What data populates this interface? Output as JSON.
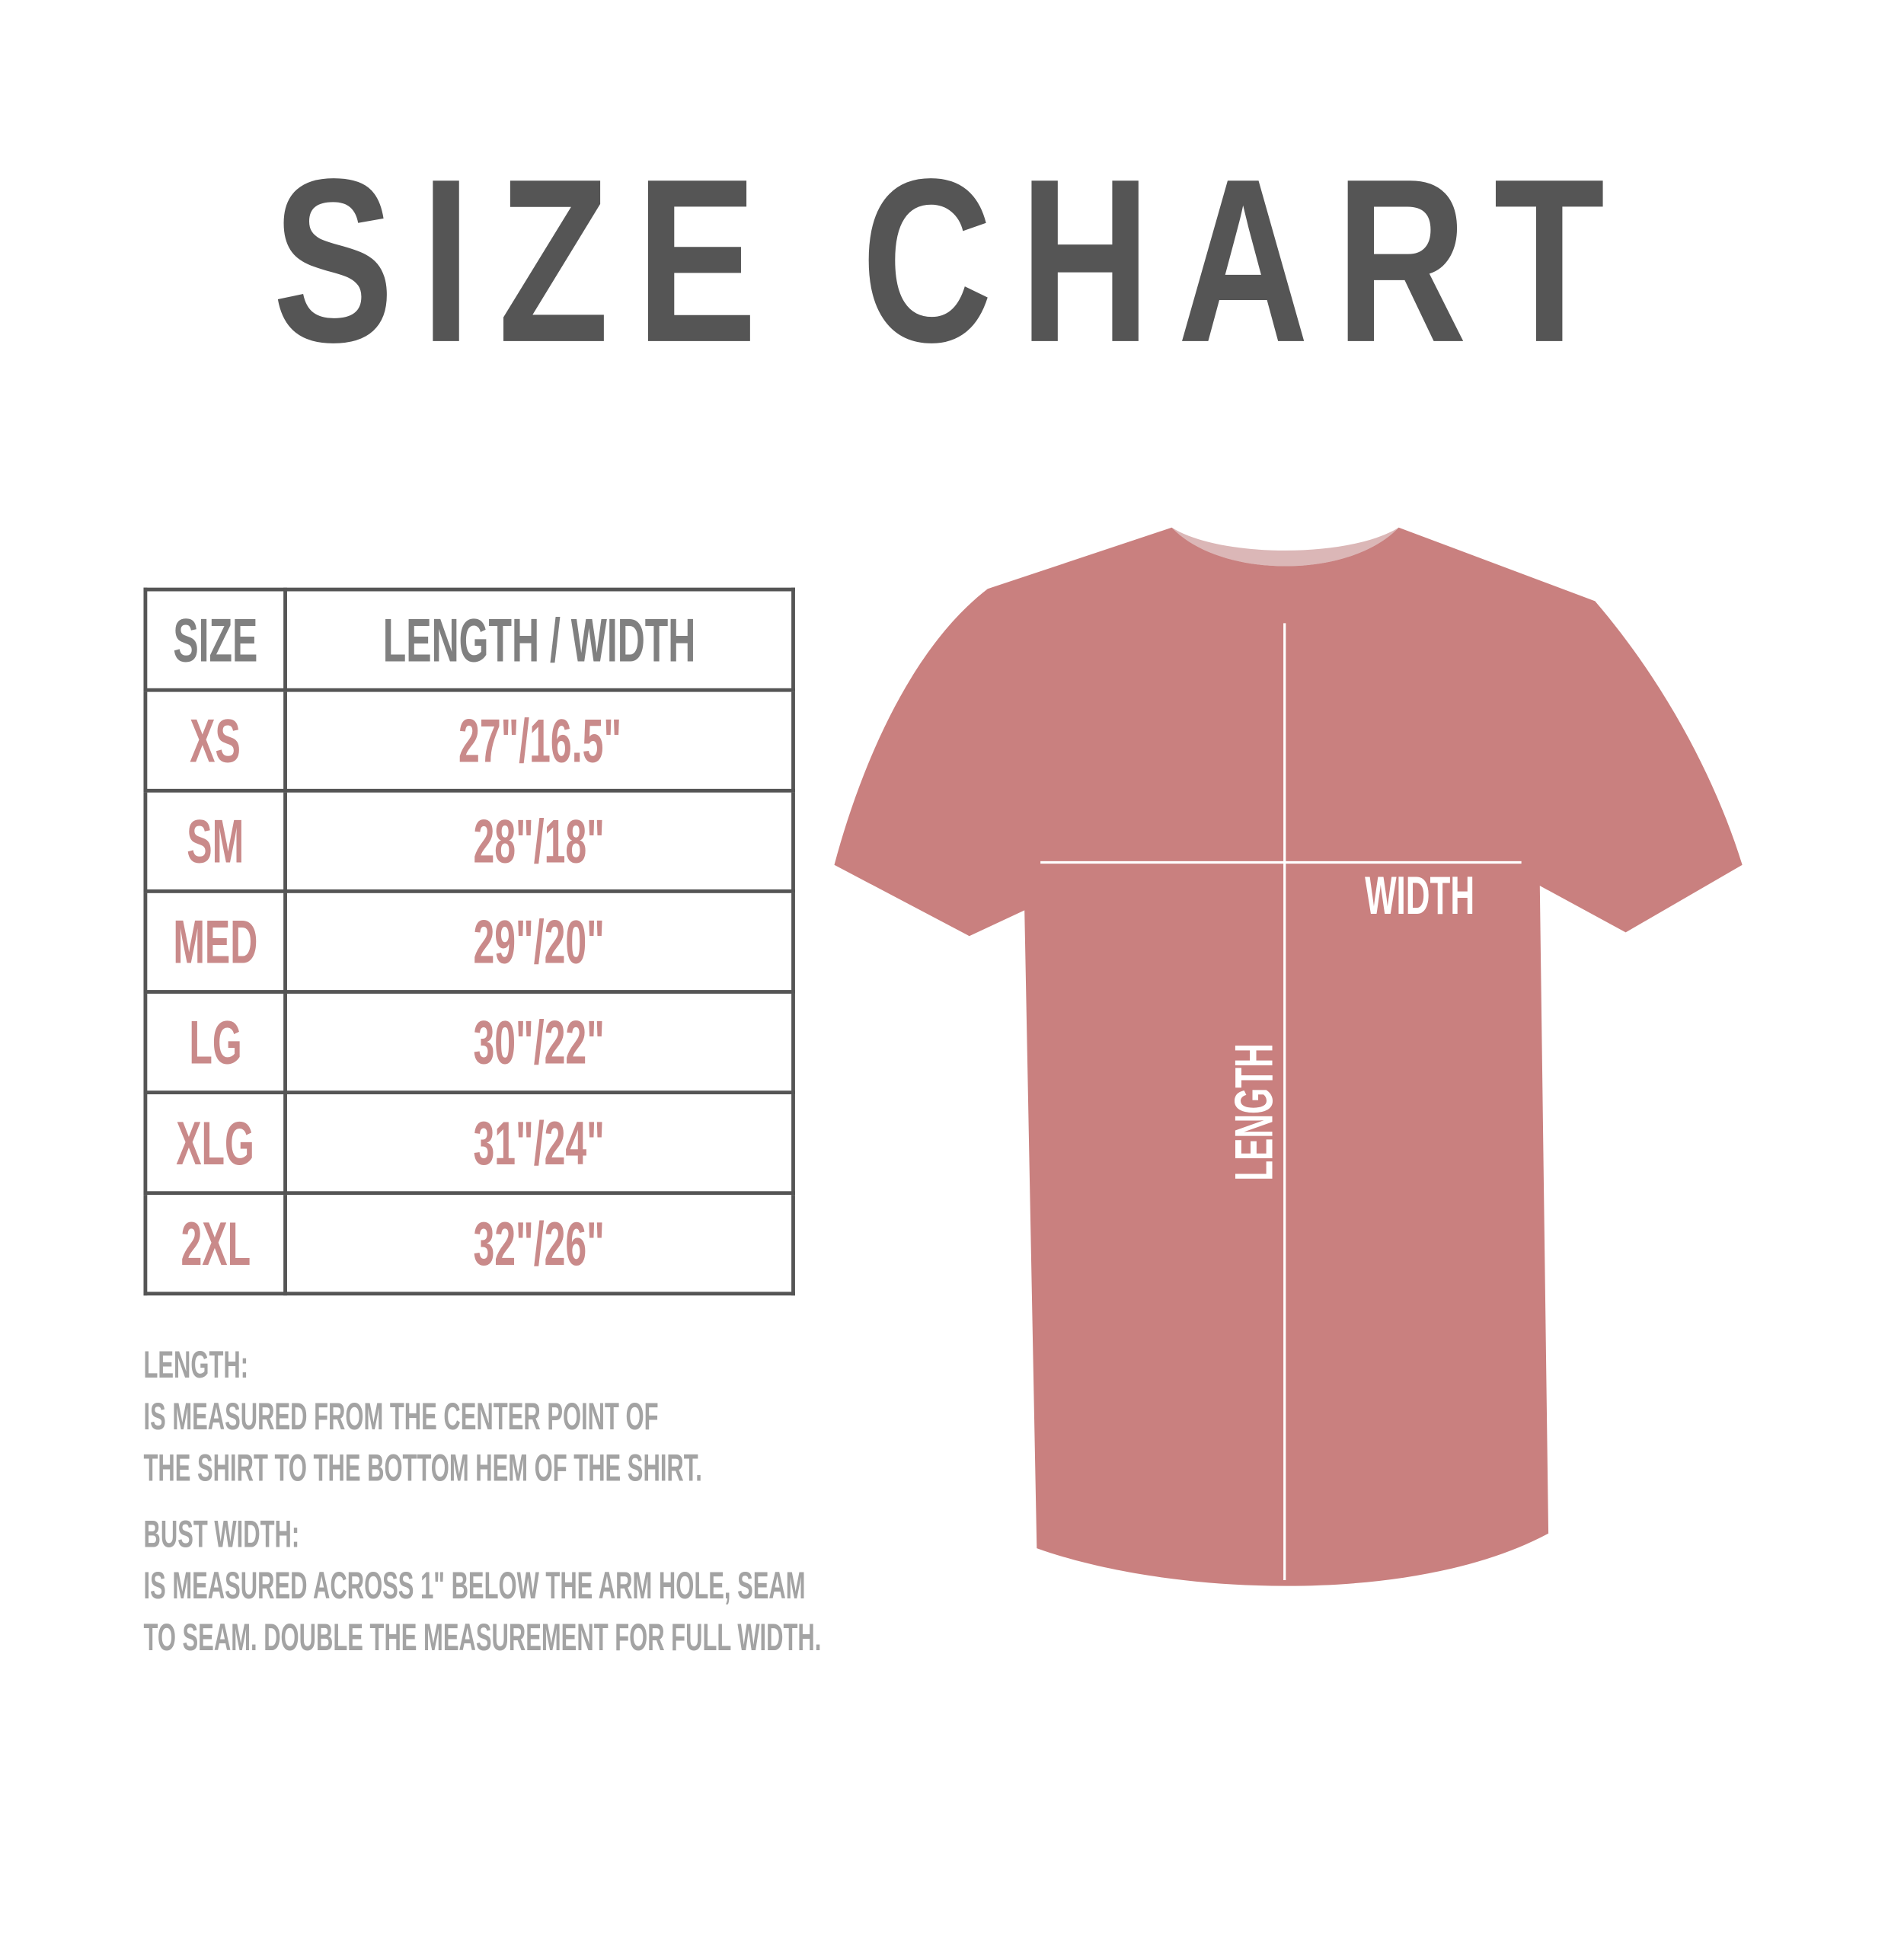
{
  "title": "SIZE CHART",
  "table": {
    "headers": [
      "SIZE",
      "LENGTH / WIDTH"
    ],
    "rows": [
      {
        "size": "XS",
        "measure": "27\"/16.5\""
      },
      {
        "size": "SM",
        "measure": "28\"/18\""
      },
      {
        "size": "MED",
        "measure": "29\"/20\""
      },
      {
        "size": "LG",
        "measure": "30\"/22\""
      },
      {
        "size": "XLG",
        "measure": "31\"/24\""
      },
      {
        "size": "2XL",
        "measure": "32\"/26\""
      }
    ]
  },
  "notes": {
    "length_heading": "LENGTH:",
    "length_lines": [
      "IS MEASURED FROM THE CENTER POINT OF",
      "THE SHIRT TO THE BOTTOM HEM OF THE SHIRT."
    ],
    "width_heading": "BUST WIDTH:",
    "width_lines": [
      "IS MEASURED ACROSS  1\" BELOW THE ARM HOLE, SEAM",
      "TO SEAM. DOUBLE THE MEASUREMENT FOR FULL WIDTH."
    ]
  },
  "diagram": {
    "width_label": "WIDTH",
    "length_label": "LENGTH",
    "shirt_color": "#c9807f"
  },
  "colors": {
    "title": "#555555",
    "header": "#808080",
    "value": "#c98a8a",
    "notes": "#a3a3a3"
  }
}
